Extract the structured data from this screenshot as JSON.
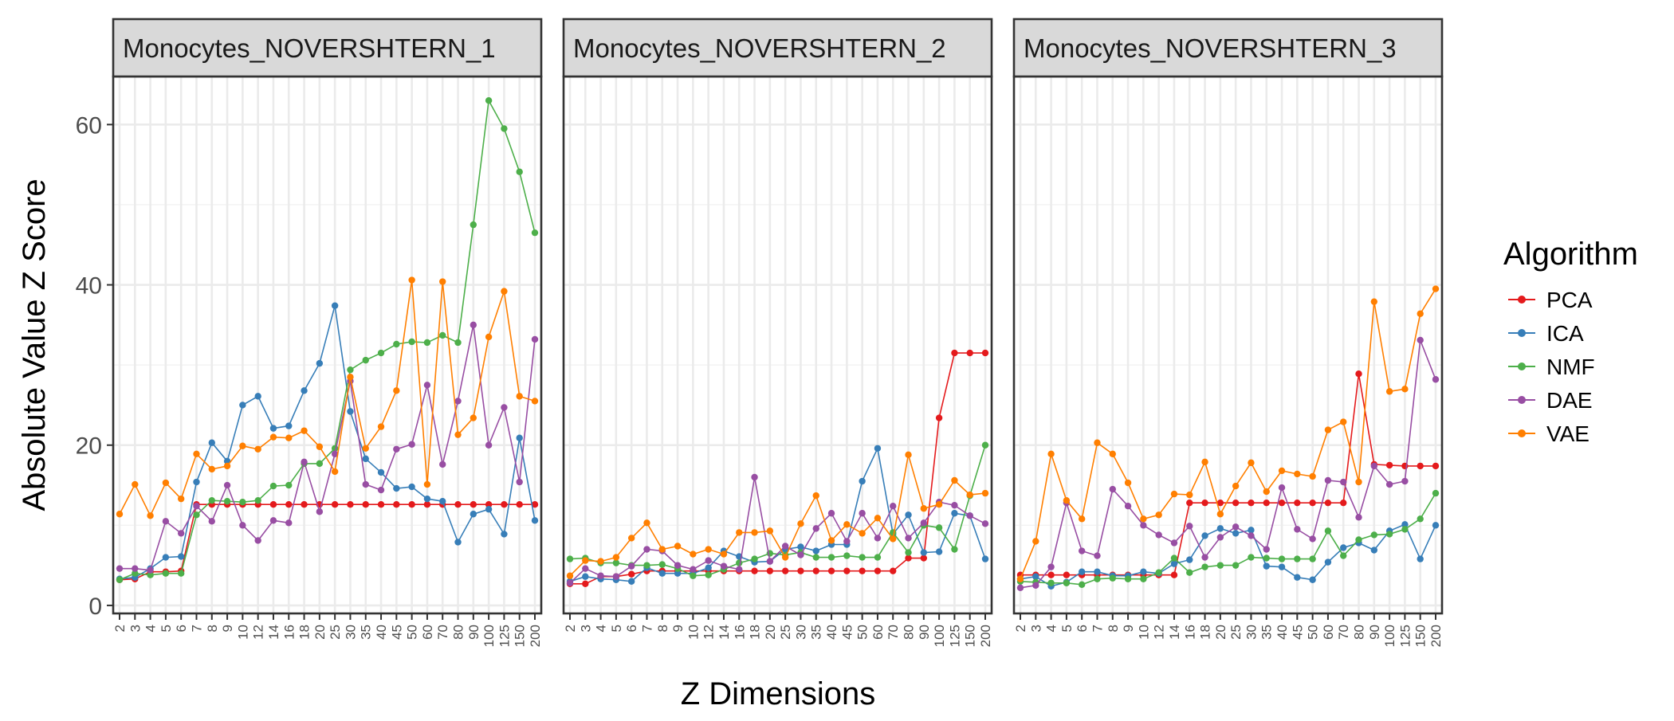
{
  "chart_data": {
    "type": "line",
    "xlabel": "Z Dimensions",
    "ylabel": "Absolute Value Z Score",
    "ylim": [
      -1,
      66
    ],
    "yticks": [
      0,
      20,
      40,
      60
    ],
    "grid": true,
    "legend": {
      "title": "Algorithm",
      "placement": "right",
      "entries": [
        "PCA",
        "ICA",
        "NMF",
        "DAE",
        "VAE"
      ]
    },
    "categories": [
      "2",
      "3",
      "4",
      "5",
      "6",
      "7",
      "8",
      "9",
      "10",
      "12",
      "14",
      "16",
      "18",
      "20",
      "25",
      "30",
      "35",
      "40",
      "45",
      "50",
      "60",
      "70",
      "80",
      "90",
      "100",
      "125",
      "150",
      "200"
    ],
    "colors": {
      "PCA": "#E41A1C",
      "ICA": "#377EB8",
      "NMF": "#4DAF4A",
      "DAE": "#984EA3",
      "VAE": "#FF7F00"
    },
    "panels": [
      {
        "title": "Monocytes_NOVERSHTERN_1",
        "series": [
          {
            "name": "PCA",
            "values": [
              3.2,
              3.3,
              4.2,
              4.2,
              4.3,
              12.6,
              12.6,
              12.6,
              12.6,
              12.6,
              12.6,
              12.6,
              12.6,
              12.6,
              12.6,
              12.6,
              12.6,
              12.6,
              12.6,
              12.6,
              12.6,
              12.6,
              12.6,
              12.6,
              12.6,
              12.6,
              12.6,
              12.6
            ]
          },
          {
            "name": "ICA",
            "values": [
              3.3,
              3.5,
              4.6,
              6.0,
              6.1,
              15.4,
              20.3,
              18.0,
              25.0,
              26.1,
              22.1,
              22.4,
              26.8,
              30.2,
              37.4,
              24.2,
              18.3,
              16.6,
              14.6,
              14.8,
              13.3,
              13.0,
              7.9,
              11.4,
              12.0,
              8.9,
              20.9,
              10.6
            ]
          },
          {
            "name": "NMF",
            "values": [
              3.2,
              4.0,
              3.8,
              4.0,
              4.0,
              11.3,
              13.1,
              13.0,
              12.9,
              13.1,
              14.9,
              15.0,
              17.7,
              17.7,
              19.6,
              29.4,
              30.6,
              31.5,
              32.6,
              32.9,
              32.8,
              33.7,
              32.8,
              47.5,
              63.0,
              59.5,
              54.1,
              46.5
            ]
          },
          {
            "name": "DAE",
            "values": [
              4.6,
              4.6,
              4.4,
              10.5,
              9.0,
              12.4,
              10.5,
              15.0,
              10.0,
              8.1,
              10.6,
              10.3,
              17.9,
              11.7,
              18.9,
              28.0,
              15.1,
              14.4,
              19.5,
              20.1,
              27.5,
              17.6,
              25.5,
              35.0,
              20.0,
              24.7,
              15.4,
              33.2
            ]
          },
          {
            "name": "VAE",
            "values": [
              11.4,
              15.1,
              11.2,
              15.3,
              13.3,
              18.9,
              17.0,
              17.4,
              19.9,
              19.5,
              21.0,
              20.9,
              21.8,
              19.8,
              16.7,
              28.5,
              19.6,
              22.3,
              26.8,
              40.6,
              15.1,
              40.4,
              21.3,
              23.4,
              33.5,
              39.2,
              26.1,
              25.5
            ]
          }
        ]
      },
      {
        "title": "Monocytes_NOVERSHTERN_2",
        "series": [
          {
            "name": "PCA",
            "values": [
              2.7,
              2.7,
              3.6,
              3.6,
              3.9,
              4.3,
              4.3,
              4.3,
              4.3,
              4.3,
              4.3,
              4.3,
              4.3,
              4.3,
              4.3,
              4.3,
              4.3,
              4.3,
              4.3,
              4.3,
              4.3,
              4.3,
              5.9,
              5.9,
              23.4,
              31.5,
              31.5,
              31.5
            ]
          },
          {
            "name": "ICA",
            "values": [
              3.0,
              3.6,
              3.3,
              3.2,
              3.0,
              4.7,
              4.0,
              4.0,
              4.0,
              4.7,
              6.8,
              6.1,
              5.4,
              5.5,
              7.0,
              7.3,
              6.8,
              7.6,
              7.6,
              15.5,
              19.6,
              8.9,
              11.3,
              6.6,
              6.7,
              11.5,
              11.2,
              5.8
            ]
          },
          {
            "name": "NMF",
            "values": [
              5.8,
              5.9,
              5.3,
              5.3,
              5.0,
              5.0,
              5.1,
              4.6,
              3.7,
              3.8,
              4.5,
              5.3,
              5.8,
              6.5,
              6.3,
              6.6,
              6.0,
              6.0,
              6.2,
              6.0,
              6.0,
              9.1,
              6.6,
              10.0,
              9.7,
              7.0,
              13.7,
              20.0
            ]
          },
          {
            "name": "DAE",
            "values": [
              2.8,
              4.6,
              3.7,
              3.6,
              4.9,
              7.0,
              6.8,
              5.0,
              4.5,
              5.6,
              4.9,
              4.5,
              16.0,
              5.5,
              7.4,
              6.3,
              9.6,
              11.5,
              8.0,
              11.5,
              8.4,
              12.4,
              8.4,
              10.3,
              12.9,
              12.5,
              11.2,
              10.2
            ]
          },
          {
            "name": "VAE",
            "values": [
              3.7,
              5.6,
              5.5,
              6.0,
              8.4,
              10.3,
              7.0,
              7.4,
              6.4,
              7.0,
              6.4,
              9.1,
              9.1,
              9.3,
              6.0,
              10.2,
              13.7,
              8.1,
              10.1,
              9.0,
              10.9,
              8.3,
              18.8,
              12.1,
              12.6,
              15.6,
              13.8,
              14.0
            ]
          }
        ]
      },
      {
        "title": "Monocytes_NOVERSHTERN_3",
        "series": [
          {
            "name": "PCA",
            "values": [
              3.8,
              3.8,
              3.8,
              3.8,
              3.8,
              3.8,
              3.8,
              3.8,
              3.8,
              3.8,
              3.8,
              12.8,
              12.8,
              12.8,
              12.8,
              12.8,
              12.8,
              12.8,
              12.8,
              12.8,
              12.8,
              12.8,
              28.9,
              17.6,
              17.5,
              17.4,
              17.4,
              17.4
            ]
          },
          {
            "name": "ICA",
            "values": [
              3.3,
              3.6,
              2.4,
              2.9,
              4.2,
              4.2,
              3.7,
              3.7,
              4.2,
              4.0,
              5.2,
              5.7,
              8.7,
              9.6,
              9.0,
              9.4,
              4.9,
              4.8,
              3.5,
              3.2,
              5.4,
              7.2,
              7.8,
              6.9,
              9.3,
              10.1,
              5.8,
              10.0
            ]
          },
          {
            "name": "NMF",
            "values": [
              3.0,
              2.9,
              2.8,
              2.8,
              2.6,
              3.3,
              3.4,
              3.3,
              3.3,
              4.1,
              5.9,
              4.1,
              4.8,
              5.0,
              5.0,
              6.0,
              5.9,
              5.8,
              5.8,
              5.8,
              9.3,
              6.2,
              8.2,
              8.8,
              8.9,
              9.5,
              10.8,
              14.0
            ]
          },
          {
            "name": "DAE",
            "values": [
              2.2,
              2.5,
              4.8,
              12.8,
              6.8,
              6.2,
              14.5,
              12.4,
              10.0,
              8.8,
              7.8,
              9.9,
              6.0,
              8.5,
              9.8,
              8.7,
              7.0,
              14.7,
              9.5,
              8.3,
              15.6,
              15.4,
              11.0,
              17.4,
              15.1,
              15.5,
              33.1,
              28.2
            ]
          },
          {
            "name": "VAE",
            "values": [
              3.3,
              8.0,
              18.9,
              13.1,
              10.8,
              20.3,
              18.9,
              15.3,
              10.8,
              11.3,
              13.9,
              13.8,
              17.9,
              11.4,
              14.9,
              17.8,
              14.2,
              16.8,
              16.4,
              16.1,
              21.9,
              22.9,
              15.4,
              37.9,
              26.7,
              27.0,
              36.4,
              39.5
            ]
          }
        ]
      }
    ]
  }
}
